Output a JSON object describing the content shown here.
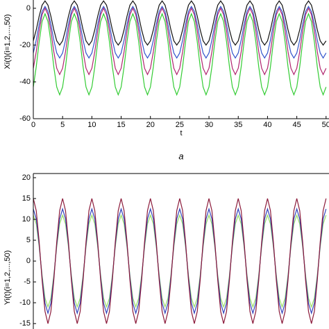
{
  "chart_data": [
    {
      "type": "line",
      "x_label": "t",
      "y_label": "Xi(t)(i=1,2,...,50)",
      "caption": "a",
      "xlim": [
        0,
        50.5
      ],
      "ylim": [
        -60,
        4.5
      ],
      "xticks": [
        0,
        5,
        10,
        15,
        20,
        25,
        30,
        35,
        40,
        45,
        50
      ],
      "yticks": [
        0,
        -20,
        -40,
        -60
      ],
      "x": [
        0,
        0.5,
        1,
        1.5,
        2,
        2.5,
        3,
        3.5,
        4,
        4.5,
        5,
        5.5,
        6,
        6.5,
        7,
        7.5,
        8,
        8.5,
        9,
        9.5,
        10,
        10.5,
        11,
        11.5,
        12,
        12.5,
        13,
        13.5,
        14,
        14.5,
        15,
        15.5,
        16,
        16.5,
        17,
        17.5,
        18,
        18.5,
        19,
        19.5,
        20,
        20.5,
        21,
        21.5,
        22,
        22.5,
        23,
        23.5,
        24,
        24.5,
        25,
        25.5,
        26,
        26.5,
        27,
        27.5,
        28,
        28.5,
        29,
        29.5,
        30,
        30.5,
        31,
        31.5,
        32,
        32.5,
        33,
        33.5,
        34,
        34.5,
        35,
        35.5,
        36,
        36.5,
        37,
        37.5,
        38,
        38.5,
        39,
        39.5,
        40,
        40.5,
        41,
        41.5,
        42,
        42.5,
        43,
        43.5,
        44,
        44.5,
        45,
        45.5,
        46,
        46.5,
        47,
        47.5,
        48,
        48.5,
        49,
        49.5,
        50
      ],
      "series": [
        {
          "color": "#33cc33",
          "values": [
            -42.8,
            -31.8,
            -18.2,
            -7.2,
            -3,
            -7.2,
            -18.2,
            -31.8,
            -42.8,
            -47,
            -42.8,
            -31.8,
            -18.2,
            -7.2,
            -3,
            -7.2,
            -18.2,
            -31.8,
            -42.8,
            -47,
            -42.8,
            -31.8,
            -18.2,
            -7.2,
            -3,
            -7.2,
            -18.2,
            -31.8,
            -42.8,
            -47,
            -42.8,
            -31.8,
            -18.2,
            -7.2,
            -3,
            -7.2,
            -18.2,
            -31.8,
            -42.8,
            -47,
            -42.8,
            -31.8,
            -18.2,
            -7.2,
            -3,
            -7.2,
            -18.2,
            -31.8,
            -42.8,
            -47,
            -42.8,
            -31.8,
            -18.2,
            -7.2,
            -3,
            -7.2,
            -18.2,
            -31.8,
            -42.8,
            -47,
            -42.8,
            -31.8,
            -18.2,
            -7.2,
            -3,
            -7.2,
            -18.2,
            -31.8,
            -42.8,
            -47,
            -42.8,
            -31.8,
            -18.2,
            -7.2,
            -3,
            -7.2,
            -18.2,
            -31.8,
            -42.8,
            -47,
            -42.8,
            -31.8,
            -18.2,
            -7.2,
            -3,
            -7.2,
            -18.2,
            -31.8,
            -42.8,
            -47,
            -42.8,
            -31.8,
            -18.2,
            -7.2,
            -3,
            -7.2,
            -18.2,
            -31.8,
            -42.8,
            -47,
            -42.8
          ]
        },
        {
          "color": "#b0246e",
          "values": [
            -32.6,
            -23.6,
            -12.4,
            -3.4,
            0,
            -3.4,
            -12.4,
            -23.6,
            -32.6,
            -36,
            -32.6,
            -23.6,
            -12.4,
            -3.4,
            0,
            -3.4,
            -12.4,
            -23.6,
            -32.6,
            -36,
            -32.6,
            -23.6,
            -12.4,
            -3.4,
            0,
            -3.4,
            -12.4,
            -23.6,
            -32.6,
            -36,
            -32.6,
            -23.6,
            -12.4,
            -3.4,
            0,
            -3.4,
            -12.4,
            -23.6,
            -32.6,
            -36,
            -32.6,
            -23.6,
            -12.4,
            -3.4,
            0,
            -3.4,
            -12.4,
            -23.6,
            -32.6,
            -36,
            -32.6,
            -23.6,
            -12.4,
            -3.4,
            0,
            -3.4,
            -12.4,
            -23.6,
            -32.6,
            -36,
            -32.6,
            -23.6,
            -12.4,
            -3.4,
            0,
            -3.4,
            -12.4,
            -23.6,
            -32.6,
            -36,
            -32.6,
            -23.6,
            -12.4,
            -3.4,
            0,
            -3.4,
            -12.4,
            -23.6,
            -32.6,
            -36,
            -32.6,
            -23.6,
            -12.4,
            -3.4,
            0,
            -3.4,
            -12.4,
            -23.6,
            -32.6,
            -36,
            -32.6,
            -23.6,
            -12.4,
            -3.4,
            0,
            -3.4,
            -12.4,
            -23.6,
            -32.6,
            -36,
            -32.6
          ]
        },
        {
          "color": "#3355cc",
          "values": [
            -24.3,
            -17.3,
            -8.7,
            -1.7,
            1,
            -1.7,
            -8.7,
            -17.3,
            -24.3,
            -27,
            -24.3,
            -17.3,
            -8.7,
            -1.7,
            1,
            -1.7,
            -8.7,
            -17.3,
            -24.3,
            -27,
            -24.3,
            -17.3,
            -8.7,
            -1.7,
            1,
            -1.7,
            -8.7,
            -17.3,
            -24.3,
            -27,
            -24.3,
            -17.3,
            -8.7,
            -1.7,
            1,
            -1.7,
            -8.7,
            -17.3,
            -24.3,
            -27,
            -24.3,
            -17.3,
            -8.7,
            -1.7,
            1,
            -1.7,
            -8.7,
            -17.3,
            -24.3,
            -27,
            -24.3,
            -17.3,
            -8.7,
            -1.7,
            1,
            -1.7,
            -8.7,
            -17.3,
            -24.3,
            -27,
            -24.3,
            -17.3,
            -8.7,
            -1.7,
            1,
            -1.7,
            -8.7,
            -17.3,
            -24.3,
            -27,
            -24.3,
            -17.3,
            -8.7,
            -1.7,
            1,
            -1.7,
            -8.7,
            -17.3,
            -24.3,
            -27,
            -24.3,
            -17.3,
            -8.7,
            -1.7,
            1,
            -1.7,
            -8.7,
            -17.3,
            -24.3,
            -27,
            -24.3,
            -17.3,
            -8.7,
            -1.7,
            1,
            -1.7,
            -8.7,
            -17.3,
            -24.3,
            -27,
            -24.3
          ]
        },
        {
          "color": "#111111",
          "values": [
            -17.7,
            -11.7,
            -4.3,
            1.7,
            4,
            1.7,
            -4.3,
            -11.7,
            -17.7,
            -20,
            -17.7,
            -11.7,
            -4.3,
            1.7,
            4,
            1.7,
            -4.3,
            -11.7,
            -17.7,
            -20,
            -17.7,
            -11.7,
            -4.3,
            1.7,
            4,
            1.7,
            -4.3,
            -11.7,
            -17.7,
            -20,
            -17.7,
            -11.7,
            -4.3,
            1.7,
            4,
            1.7,
            -4.3,
            -11.7,
            -17.7,
            -20,
            -17.7,
            -11.7,
            -4.3,
            1.7,
            4,
            1.7,
            -4.3,
            -11.7,
            -17.7,
            -20,
            -17.7,
            -11.7,
            -4.3,
            1.7,
            4,
            1.7,
            -4.3,
            -11.7,
            -17.7,
            -20,
            -17.7,
            -11.7,
            -4.3,
            1.7,
            4,
            1.7,
            -4.3,
            -11.7,
            -17.7,
            -20,
            -17.7,
            -11.7,
            -4.3,
            1.7,
            4,
            1.7,
            -4.3,
            -11.7,
            -17.7,
            -20,
            -17.7,
            -11.7,
            -4.3,
            1.7,
            4,
            1.7,
            -4.3,
            -11.7,
            -17.7,
            -20,
            -17.7,
            -11.7,
            -4.3,
            1.7,
            4,
            1.7,
            -4.3,
            -11.7,
            -17.7,
            -20,
            -17.7
          ]
        }
      ]
    },
    {
      "type": "line",
      "y_label": "Yi(t)(i=1,2,...,50)",
      "xlim": [
        0,
        50.5
      ],
      "ylim": [
        -16.3,
        21
      ],
      "yticks": [
        20,
        15,
        10,
        5,
        0,
        -5,
        -10,
        -15
      ],
      "x": [
        0,
        0.5,
        1,
        1.5,
        2,
        2.5,
        3,
        3.5,
        4,
        4.5,
        5,
        5.5,
        6,
        6.5,
        7,
        7.5,
        8,
        8.5,
        9,
        9.5,
        10,
        10.5,
        11,
        11.5,
        12,
        12.5,
        13,
        13.5,
        14,
        14.5,
        15,
        15.5,
        16,
        16.5,
        17,
        17.5,
        18,
        18.5,
        19,
        19.5,
        20,
        20.5,
        21,
        21.5,
        22,
        22.5,
        23,
        23.5,
        24,
        24.5,
        25,
        25.5,
        26,
        26.5,
        27,
        27.5,
        28,
        28.5,
        29,
        29.5,
        30,
        30.5,
        31,
        31.5,
        32,
        32.5,
        33,
        33.5,
        34,
        34.5,
        35,
        35.5,
        36,
        36.5,
        37,
        37.5,
        38,
        38.5,
        39,
        39.5,
        40,
        40.5,
        41,
        41.5,
        42,
        42.5,
        43,
        43.5,
        44,
        44.5,
        45,
        45.5,
        46,
        46.5,
        47,
        47.5,
        48,
        48.5,
        49,
        49.5,
        50
      ],
      "series": [
        {
          "color": "#99dd66",
          "values": [
            11,
            8.9,
            3.4,
            -3.4,
            -8.9,
            -11,
            -8.9,
            -3.4,
            3.4,
            8.9,
            11,
            8.9,
            3.4,
            -3.4,
            -8.9,
            -11,
            -8.9,
            -3.4,
            3.4,
            8.9,
            11,
            8.9,
            3.4,
            -3.4,
            -8.9,
            -11,
            -8.9,
            -3.4,
            3.4,
            8.9,
            11,
            8.9,
            3.4,
            -3.4,
            -8.9,
            -11,
            -8.9,
            -3.4,
            3.4,
            8.9,
            11,
            8.9,
            3.4,
            -3.4,
            -8.9,
            -11,
            -8.9,
            -3.4,
            3.4,
            8.9,
            11,
            8.9,
            3.4,
            -3.4,
            -8.9,
            -11,
            -8.9,
            -3.4,
            3.4,
            8.9,
            11,
            8.9,
            3.4,
            -3.4,
            -8.9,
            -11,
            -8.9,
            -3.4,
            3.4,
            8.9,
            11,
            8.9,
            3.4,
            -3.4,
            -8.9,
            -11,
            -8.9,
            -3.4,
            3.4,
            8.9,
            11,
            8.9,
            3.4,
            -3.4,
            -8.9,
            -11,
            -8.9,
            -3.4,
            3.4,
            8.9,
            11,
            8.9,
            3.4,
            -3.4,
            -8.9,
            -11,
            -8.9,
            -3.4,
            3.4,
            8.9,
            11
          ]
        },
        {
          "color": "#3344bb",
          "values": [
            12.5,
            10.1,
            3.9,
            -3.9,
            -10.1,
            -12.5,
            -10.1,
            -3.9,
            3.9,
            10.1,
            12.5,
            10.1,
            3.9,
            -3.9,
            -10.1,
            -12.5,
            -10.1,
            -3.9,
            3.9,
            10.1,
            12.5,
            10.1,
            3.9,
            -3.9,
            -10.1,
            -12.5,
            -10.1,
            -3.9,
            3.9,
            10.1,
            12.5,
            10.1,
            3.9,
            -3.9,
            -10.1,
            -12.5,
            -10.1,
            -3.9,
            3.9,
            10.1,
            12.5,
            10.1,
            3.9,
            -3.9,
            -10.1,
            -12.5,
            -10.1,
            -3.9,
            3.9,
            10.1,
            12.5,
            10.1,
            3.9,
            -3.9,
            -10.1,
            -12.5,
            -10.1,
            -3.9,
            3.9,
            10.1,
            12.5,
            10.1,
            3.9,
            -3.9,
            -10.1,
            -12.5,
            -10.1,
            -3.9,
            3.9,
            10.1,
            12.5,
            10.1,
            3.9,
            -3.9,
            -10.1,
            -12.5,
            -10.1,
            -3.9,
            3.9,
            10.1,
            12.5,
            10.1,
            3.9,
            -3.9,
            -10.1,
            -12.5,
            -10.1,
            -3.9,
            3.9,
            10.1,
            12.5,
            10.1,
            3.9,
            -3.9,
            -10.1,
            -12.5,
            -10.1,
            -3.9,
            3.9,
            10.1,
            12.5
          ]
        },
        {
          "color": "#8b1a3a",
          "values": [
            15,
            12.1,
            4.6,
            -4.6,
            -12.1,
            -15,
            -12.1,
            -4.6,
            4.6,
            12.1,
            15,
            12.1,
            4.6,
            -4.6,
            -12.1,
            -15,
            -12.1,
            -4.6,
            4.6,
            12.1,
            15,
            12.1,
            4.6,
            -4.6,
            -12.1,
            -15,
            -12.1,
            -4.6,
            4.6,
            12.1,
            15,
            12.1,
            4.6,
            -4.6,
            -12.1,
            -15,
            -12.1,
            -4.6,
            4.6,
            12.1,
            15,
            12.1,
            4.6,
            -4.6,
            -12.1,
            -15,
            -12.1,
            -4.6,
            4.6,
            12.1,
            15,
            12.1,
            4.6,
            -4.6,
            -12.1,
            -15,
            -12.1,
            -4.6,
            4.6,
            12.1,
            15,
            12.1,
            4.6,
            -4.6,
            -12.1,
            -15,
            -12.1,
            -4.6,
            4.6,
            12.1,
            15,
            12.1,
            4.6,
            -4.6,
            -12.1,
            -15,
            -12.1,
            -4.6,
            4.6,
            12.1,
            15,
            12.1,
            4.6,
            -4.6,
            -12.1,
            -15,
            -12.1,
            -4.6,
            4.6,
            12.1,
            15,
            12.1,
            4.6,
            -4.6,
            -12.1,
            -15,
            -12.1,
            -4.6,
            4.6,
            12.1,
            15
          ]
        }
      ]
    }
  ]
}
